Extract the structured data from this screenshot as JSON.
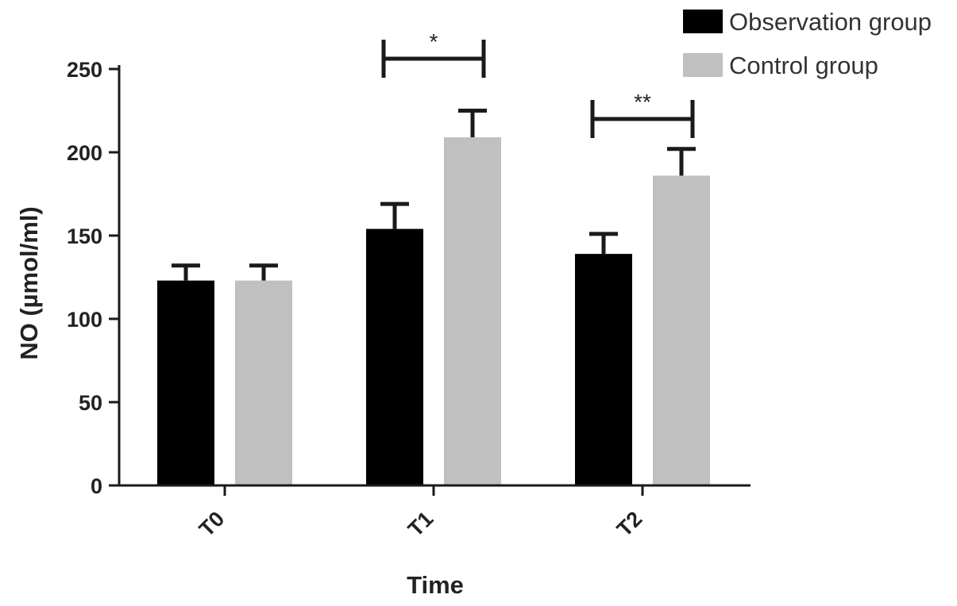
{
  "chart_data": {
    "type": "bar",
    "xlabel": "Time",
    "ylabel": "NO (µmol/ml)",
    "categories": [
      "T0",
      "T1",
      "T2"
    ],
    "ylim": [
      0,
      250
    ],
    "yticks": [
      0,
      50,
      100,
      150,
      200,
      250
    ],
    "series": [
      {
        "name": "Observation group",
        "color": "#000000",
        "values": [
          123,
          154,
          139
        ],
        "errors": [
          9,
          15,
          12
        ]
      },
      {
        "name": "Control group",
        "color": "#c0c0c0",
        "values": [
          123,
          209,
          186
        ],
        "errors": [
          9,
          16,
          16
        ]
      }
    ],
    "significance": [
      {
        "category": "T1",
        "label": "*"
      },
      {
        "category": "T2",
        "label": "**"
      }
    ],
    "legend_position": "top-right",
    "grid": false
  }
}
